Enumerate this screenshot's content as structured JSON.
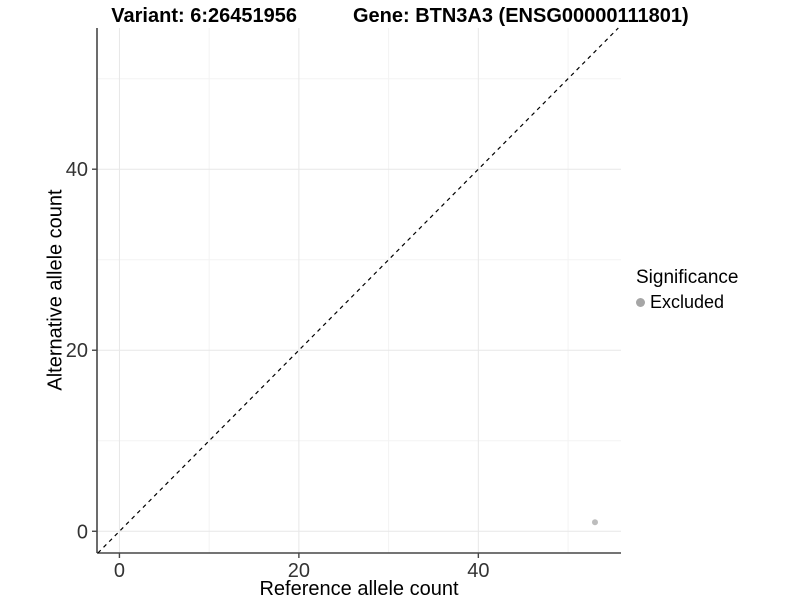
{
  "chart_data": {
    "type": "scatter",
    "title_left": "Variant: 6:26451956",
    "title_right": "Gene: BTN3A3 (ENSG00000111801)",
    "xlabel": "Reference allele count",
    "ylabel": "Alternative allele count",
    "x_ticks": [
      0,
      20,
      40
    ],
    "y_ticks": [
      0,
      20,
      40
    ],
    "x_minor_gridlines": [
      10,
      30,
      50
    ],
    "y_minor_gridlines": [
      10,
      30,
      50
    ],
    "xlim": [
      -2.5,
      55.9
    ],
    "ylim": [
      -2.4,
      55.6
    ],
    "grid": true,
    "identity_line": {
      "equation": "y = x",
      "style": "dashed",
      "color": "#000000"
    },
    "series": [
      {
        "name": "Excluded",
        "color": "#bdbdbd",
        "points": [
          {
            "x": 53,
            "y": 1
          }
        ]
      }
    ],
    "legend": {
      "title": "Significance",
      "position": "right",
      "entries": [
        {
          "label": "Excluded",
          "color": "#a6a6a6"
        }
      ]
    },
    "styles": {
      "grid_major": "#e7e7e7",
      "grid_minor": "#f3f3f3",
      "axis_line": "#474747",
      "tick_label_color": "#333333",
      "tick_label_size": 20
    }
  }
}
